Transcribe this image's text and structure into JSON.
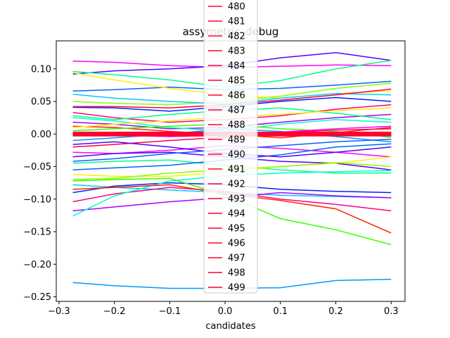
{
  "chart_data": {
    "type": "line",
    "title": "assymetric_debug",
    "xlabel": "candidates",
    "ylabel": "",
    "xlim": [
      -0.305,
      0.325
    ],
    "ylim": [
      -0.257,
      0.143
    ],
    "xticks": [
      -0.3,
      -0.2,
      -0.1,
      0.0,
      0.1,
      0.2,
      0.3
    ],
    "xtick_labels": [
      "−0.3",
      "−0.2",
      "−0.1",
      "0.0",
      "0.1",
      "0.2",
      "0.3"
    ],
    "yticks": [
      -0.25,
      -0.2,
      -0.15,
      -0.1,
      -0.05,
      0.0,
      0.05,
      0.1
    ],
    "ytick_labels": [
      "−0.25",
      "−0.20",
      "−0.15",
      "−0.10",
      "−0.05",
      "0.00",
      "0.05",
      "0.10"
    ],
    "grid": false,
    "legend_position": "top-center",
    "x": [
      -0.275,
      -0.2,
      -0.1,
      0.0,
      0.1,
      0.2,
      0.3
    ],
    "background_series_colors": [
      "#ff00ff",
      "#5500ff",
      "#00ff88",
      "#0066ff",
      "#ffee00",
      "#88ff00",
      "#00ccff",
      "#0022ff",
      "#ff0088",
      "#aa00ff",
      "#00ffcc",
      "#ff2200",
      "#33ff00",
      "#0099ff",
      "#ff0044"
    ],
    "background_series": [
      [
        0.112,
        0.11,
        0.105,
        0.102,
        0.104,
        0.106,
        0.105
      ],
      [
        0.092,
        0.097,
        0.1,
        0.105,
        0.117,
        0.125,
        0.113
      ],
      [
        0.096,
        0.091,
        0.083,
        0.072,
        0.082,
        0.1,
        0.113
      ],
      [
        0.066,
        0.068,
        0.072,
        0.068,
        0.07,
        0.075,
        0.081
      ],
      [
        0.094,
        0.083,
        0.07,
        0.06,
        0.055,
        0.062,
        0.066
      ],
      [
        0.05,
        0.047,
        0.045,
        0.05,
        0.058,
        0.07,
        0.078
      ],
      [
        0.061,
        0.055,
        0.05,
        0.046,
        0.055,
        0.062,
        0.06
      ],
      [
        0.041,
        0.04,
        0.035,
        0.042,
        0.05,
        0.056,
        0.05
      ],
      [
        0.033,
        0.025,
        0.018,
        0.022,
        0.028,
        0.038,
        0.045
      ],
      [
        0.018,
        0.015,
        0.008,
        0.01,
        0.018,
        0.025,
        0.03
      ],
      [
        0.025,
        0.02,
        0.01,
        0.004,
        0.015,
        0.022,
        0.018
      ],
      [
        0.012,
        0.01,
        0.004,
        0.0,
        -0.006,
        0.002,
        0.01
      ],
      [
        0.005,
        0.008,
        0.012,
        0.015,
        0.008,
        0.004,
        -0.005
      ],
      [
        -0.01,
        -0.006,
        0.0,
        0.008,
        0.004,
        -0.004,
        -0.012
      ],
      [
        -0.02,
        -0.016,
        -0.01,
        -0.005,
        0.002,
        0.006,
        0.008
      ],
      [
        -0.028,
        -0.03,
        -0.025,
        -0.018,
        -0.022,
        -0.028,
        -0.035
      ],
      [
        -0.035,
        -0.03,
        -0.028,
        -0.035,
        -0.042,
        -0.045,
        -0.055
      ],
      [
        -0.045,
        -0.042,
        -0.04,
        -0.048,
        -0.055,
        -0.06,
        -0.06
      ],
      [
        -0.055,
        -0.052,
        -0.048,
        -0.04,
        -0.032,
        -0.02,
        -0.015
      ],
      [
        -0.062,
        -0.065,
        -0.065,
        -0.058,
        -0.05,
        -0.045,
        -0.035
      ],
      [
        -0.07,
        -0.068,
        -0.06,
        -0.055,
        -0.05,
        -0.044,
        -0.05
      ],
      [
        -0.078,
        -0.082,
        -0.086,
        -0.09,
        -0.094,
        -0.096,
        -0.098
      ],
      [
        -0.09,
        -0.08,
        -0.075,
        -0.078,
        -0.085,
        -0.088,
        -0.09
      ],
      [
        -0.104,
        -0.092,
        -0.082,
        -0.088,
        -0.1,
        -0.108,
        -0.118
      ],
      [
        -0.118,
        -0.112,
        -0.104,
        -0.098,
        -0.09,
        -0.095,
        -0.098
      ],
      [
        -0.126,
        -0.095,
        -0.072,
        -0.064,
        -0.06,
        -0.058,
        -0.056
      ],
      [
        -0.085,
        -0.082,
        -0.078,
        -0.092,
        -0.102,
        -0.115,
        -0.152
      ],
      [
        -0.072,
        -0.07,
        -0.068,
        -0.094,
        -0.13,
        -0.147,
        -0.17
      ],
      [
        -0.228,
        -0.233,
        -0.237,
        -0.237,
        -0.236,
        -0.225,
        -0.223
      ],
      [
        0.042,
        0.042,
        0.04,
        0.045,
        0.052,
        0.06,
        0.069
      ],
      [
        0.0,
        -0.002,
        -0.004,
        -0.002,
        0.003,
        0.008,
        0.012
      ],
      [
        -0.016,
        -0.012,
        -0.02,
        -0.03,
        -0.035,
        -0.028,
        -0.02
      ],
      [
        0.028,
        0.022,
        0.03,
        0.036,
        0.04,
        0.032,
        0.022
      ],
      [
        -0.042,
        -0.038,
        -0.03,
        -0.024,
        -0.018,
        -0.012,
        -0.008
      ],
      [
        0.01,
        0.015,
        0.02,
        0.026,
        0.03,
        0.036,
        0.04
      ]
    ],
    "legend_entries": [
      "480",
      "481",
      "482",
      "483",
      "484",
      "485",
      "486",
      "487",
      "488",
      "489",
      "490",
      "491",
      "492",
      "493",
      "494",
      "495",
      "496",
      "497",
      "498",
      "499"
    ],
    "legend_color": "#ff0030"
  }
}
